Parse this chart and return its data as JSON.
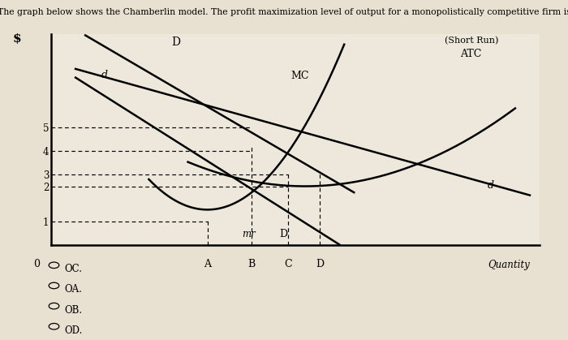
{
  "title": "The graph below shows the Chamberlin model. The profit maximization level of output for a monopolistically competitive firm is",
  "bg_color": "#e8e0d0",
  "plot_bg_color": "#ede8db",
  "x_range": [
    0,
    10
  ],
  "y_range": [
    0,
    9
  ],
  "x_A": 3.2,
  "x_B": 4.1,
  "x_C": 4.85,
  "x_D_qty": 5.5,
  "answer_choices": [
    "OC.",
    "OA.",
    "OB.",
    "OD."
  ]
}
